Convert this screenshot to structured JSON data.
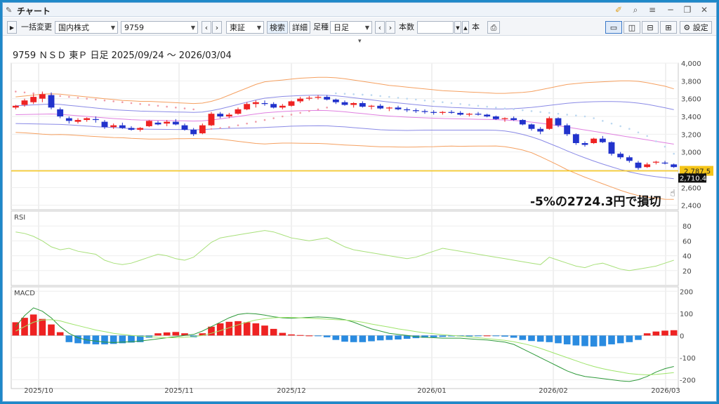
{
  "window": {
    "title": "チャート",
    "icons": [
      "pin-icon",
      "search-icon",
      "menu-icon",
      "minimize-icon",
      "restore-icon",
      "close-icon"
    ]
  },
  "toolbar": {
    "collapse_label": "▶",
    "bulk_change_label": "一括変更",
    "market_select": "国内株式",
    "code_input": "9759",
    "exchange_select": "東証",
    "search_label": "検索",
    "detail_label": "詳細",
    "timeframe_label": "足種",
    "timeframe_select": "日足",
    "bars_label": "本数",
    "bars_unit": "本",
    "settings_label": "設定"
  },
  "chart": {
    "header": "9759 ＮＳＤ 東Ｐ 日足 2025/09/24 ～ 2026/03/04",
    "price_badge_current": "2,787.5",
    "price_badge_cursor": "2,710.4",
    "annotation": "-5%の2724.3円で損切",
    "rsi_label": "RSI",
    "macd_label": "MACD",
    "colors": {
      "up": "#ee2222",
      "down": "#2233cc",
      "macd_pos": "#ee2222",
      "macd_neg": "#2a8be0",
      "rsi": "#a8e07a",
      "badge_current": "#f5c518",
      "badge_cursor": "#111111"
    }
  },
  "chart_data": [
    {
      "type": "candlestick",
      "title": "",
      "y_ticks": [
        2400,
        2600,
        2800,
        3000,
        3200,
        3400,
        3600,
        3800,
        4000
      ],
      "ylim": [
        2350,
        4000
      ],
      "x_ticks": [
        "2025/10",
        "2025/11",
        "2025/12",
        "2026/01",
        "2026/02",
        "2026/03"
      ],
      "candles": [
        [
          3500,
          3530,
          3480,
          3520
        ],
        [
          3530,
          3600,
          3510,
          3580
        ],
        [
          3560,
          3650,
          3540,
          3620
        ],
        [
          3600,
          3680,
          3560,
          3650
        ],
        [
          3640,
          3670,
          3480,
          3500
        ],
        [
          3480,
          3500,
          3380,
          3400
        ],
        [
          3380,
          3400,
          3320,
          3350
        ],
        [
          3340,
          3380,
          3320,
          3360
        ],
        [
          3360,
          3390,
          3340,
          3380
        ],
        [
          3370,
          3400,
          3330,
          3360
        ],
        [
          3340,
          3360,
          3260,
          3280
        ],
        [
          3280,
          3320,
          3260,
          3300
        ],
        [
          3300,
          3330,
          3260,
          3270
        ],
        [
          3270,
          3290,
          3240,
          3250
        ],
        [
          3250,
          3280,
          3230,
          3270
        ],
        [
          3290,
          3360,
          3280,
          3350
        ],
        [
          3330,
          3350,
          3300,
          3310
        ],
        [
          3320,
          3360,
          3290,
          3340
        ],
        [
          3340,
          3370,
          3300,
          3310
        ],
        [
          3300,
          3320,
          3240,
          3250
        ],
        [
          3250,
          3270,
          3180,
          3200
        ],
        [
          3210,
          3320,
          3200,
          3300
        ],
        [
          3300,
          3450,
          3290,
          3430
        ],
        [
          3430,
          3450,
          3380,
          3400
        ],
        [
          3400,
          3440,
          3380,
          3420
        ],
        [
          3430,
          3500,
          3420,
          3480
        ],
        [
          3480,
          3560,
          3470,
          3540
        ],
        [
          3540,
          3580,
          3500,
          3560
        ],
        [
          3550,
          3580,
          3520,
          3540
        ],
        [
          3540,
          3560,
          3490,
          3500
        ],
        [
          3500,
          3540,
          3480,
          3520
        ],
        [
          3520,
          3580,
          3510,
          3570
        ],
        [
          3570,
          3620,
          3550,
          3600
        ],
        [
          3600,
          3630,
          3580,
          3610
        ],
        [
          3610,
          3640,
          3590,
          3620
        ],
        [
          3620,
          3640,
          3580,
          3590
        ],
        [
          3590,
          3600,
          3540,
          3560
        ],
        [
          3560,
          3580,
          3520,
          3530
        ],
        [
          3530,
          3560,
          3500,
          3550
        ],
        [
          3550,
          3570,
          3500,
          3510
        ],
        [
          3510,
          3530,
          3480,
          3520
        ],
        [
          3520,
          3540,
          3480,
          3490
        ],
        [
          3490,
          3510,
          3460,
          3500
        ],
        [
          3500,
          3520,
          3470,
          3480
        ],
        [
          3480,
          3500,
          3450,
          3470
        ],
        [
          3470,
          3490,
          3440,
          3460
        ],
        [
          3460,
          3480,
          3430,
          3450
        ],
        [
          3450,
          3470,
          3420,
          3440
        ],
        [
          3440,
          3460,
          3420,
          3450
        ],
        [
          3450,
          3470,
          3430,
          3440
        ],
        [
          3440,
          3460,
          3410,
          3420
        ],
        [
          3420,
          3440,
          3400,
          3430
        ],
        [
          3430,
          3450,
          3410,
          3420
        ],
        [
          3420,
          3430,
          3390,
          3400
        ],
        [
          3400,
          3410,
          3360,
          3370
        ],
        [
          3370,
          3390,
          3340,
          3380
        ],
        [
          3380,
          3400,
          3350,
          3360
        ],
        [
          3360,
          3370,
          3300,
          3310
        ],
        [
          3310,
          3320,
          3240,
          3260
        ],
        [
          3260,
          3280,
          3200,
          3230
        ],
        [
          3260,
          3400,
          3250,
          3380
        ],
        [
          3380,
          3390,
          3280,
          3300
        ],
        [
          3300,
          3320,
          3180,
          3200
        ],
        [
          3200,
          3210,
          3080,
          3100
        ],
        [
          3100,
          3120,
          3060,
          3080
        ],
        [
          3100,
          3160,
          3090,
          3150
        ],
        [
          3150,
          3180,
          3100,
          3110
        ],
        [
          3110,
          3120,
          2960,
          2980
        ],
        [
          2980,
          3000,
          2920,
          2940
        ],
        [
          2940,
          2960,
          2880,
          2900
        ],
        [
          2880,
          2900,
          2800,
          2820
        ],
        [
          2830,
          2880,
          2820,
          2860
        ],
        [
          2880,
          2900,
          2860,
          2890
        ],
        [
          2880,
          2900,
          2860,
          2870
        ],
        [
          2860,
          2870,
          2820,
          2830
        ]
      ],
      "upper_2sigma": [
        3620,
        3630,
        3640,
        3650,
        3655,
        3650,
        3640,
        3630,
        3620,
        3610,
        3600,
        3590,
        3580,
        3575,
        3570,
        3570,
        3565,
        3560,
        3555,
        3550,
        3545,
        3550,
        3570,
        3600,
        3640,
        3680,
        3720,
        3760,
        3790,
        3800,
        3810,
        3820,
        3830,
        3835,
        3840,
        3840,
        3835,
        3825,
        3810,
        3795,
        3780,
        3765,
        3750,
        3740,
        3730,
        3720,
        3710,
        3700,
        3690,
        3685,
        3680,
        3675,
        3670,
        3665,
        3660,
        3660,
        3665,
        3670,
        3680,
        3700,
        3720,
        3740,
        3760,
        3770,
        3780,
        3785,
        3790,
        3795,
        3800,
        3800,
        3795,
        3780,
        3760,
        3740,
        3710
      ],
      "upper_1sigma": [
        3520,
        3525,
        3530,
        3535,
        3540,
        3535,
        3525,
        3515,
        3505,
        3495,
        3485,
        3475,
        3470,
        3465,
        3460,
        3458,
        3455,
        3452,
        3450,
        3448,
        3446,
        3450,
        3465,
        3485,
        3510,
        3535,
        3560,
        3585,
        3605,
        3615,
        3625,
        3630,
        3635,
        3638,
        3640,
        3638,
        3632,
        3622,
        3610,
        3598,
        3586,
        3574,
        3562,
        3552,
        3542,
        3532,
        3522,
        3514,
        3508,
        3502,
        3498,
        3494,
        3490,
        3486,
        3484,
        3484,
        3488,
        3494,
        3502,
        3512,
        3524,
        3536,
        3548,
        3556,
        3562,
        3566,
        3568,
        3568,
        3566,
        3560,
        3550,
        3536,
        3518,
        3498,
        3476
      ],
      "mid": [
        3420,
        3422,
        3424,
        3426,
        3428,
        3424,
        3416,
        3408,
        3400,
        3392,
        3384,
        3376,
        3370,
        3364,
        3360,
        3358,
        3356,
        3354,
        3352,
        3350,
        3348,
        3350,
        3360,
        3372,
        3386,
        3400,
        3414,
        3428,
        3440,
        3448,
        3455,
        3460,
        3464,
        3466,
        3468,
        3466,
        3460,
        3452,
        3442,
        3432,
        3422,
        3412,
        3404,
        3398,
        3392,
        3388,
        3384,
        3380,
        3377,
        3374,
        3372,
        3370,
        3368,
        3366,
        3364,
        3360,
        3354,
        3346,
        3336,
        3324,
        3310,
        3296,
        3280,
        3264,
        3248,
        3232,
        3216,
        3200,
        3184,
        3168,
        3152,
        3136,
        3120,
        3104,
        3088
      ],
      "lower_1sigma": [
        3320,
        3318,
        3316,
        3314,
        3312,
        3310,
        3305,
        3298,
        3292,
        3285,
        3280,
        3275,
        3270,
        3262,
        3258,
        3256,
        3255,
        3254,
        3253,
        3252,
        3250,
        3252,
        3258,
        3262,
        3266,
        3268,
        3270,
        3272,
        3276,
        3281,
        3285,
        3290,
        3293,
        3294,
        3296,
        3294,
        3288,
        3282,
        3274,
        3266,
        3258,
        3250,
        3246,
        3244,
        3242,
        3244,
        3246,
        3246,
        3246,
        3246,
        3246,
        3246,
        3246,
        3246,
        3244,
        3236,
        3220,
        3198,
        3170,
        3136,
        3096,
        3056,
        3012,
        2972,
        2934,
        2898,
        2864,
        2832,
        2802,
        2776,
        2754,
        2736,
        2722,
        2710,
        2700
      ],
      "lower_2sigma": [
        3220,
        3215,
        3208,
        3200,
        3195,
        3196,
        3192,
        3186,
        3180,
        3174,
        3168,
        3162,
        3160,
        3153,
        3150,
        3146,
        3145,
        3146,
        3149,
        3150,
        3151,
        3150,
        3150,
        3144,
        3132,
        3120,
        3108,
        3096,
        3090,
        3096,
        3100,
        3100,
        3098,
        3097,
        3096,
        3092,
        3085,
        3079,
        3074,
        3069,
        3064,
        3059,
        3058,
        3056,
        3054,
        3056,
        3058,
        3060,
        3064,
        3067,
        3064,
        3065,
        3066,
        3067,
        3068,
        3060,
        3043,
        3022,
        2992,
        2948,
        2900,
        2852,
        2800,
        2758,
        2716,
        2679,
        2642,
        2605,
        2568,
        2536,
        2509,
        2492,
        2480,
        2468,
        2466
      ],
      "sar": [
        3680,
        3670,
        3660,
        3650,
        3640,
        3630,
        3620,
        3610,
        3600,
        3590,
        3580,
        3570,
        3560,
        3550,
        3540,
        3530,
        3520,
        3510,
        3500,
        3490,
        3480,
        3250,
        3260,
        3270,
        3280,
        3300,
        3320,
        3340,
        3360,
        3380,
        3400,
        3420,
        3440,
        3460,
        3480,
        3500,
        3660,
        3655,
        3650,
        3645,
        3640,
        3630,
        3620,
        3610,
        3600,
        3590,
        3580,
        3570,
        3560,
        3550,
        3540,
        3530,
        3520,
        3510,
        3500,
        3490,
        3480,
        3470,
        3460,
        3450,
        3440,
        3430,
        3420,
        3410,
        3400,
        3380,
        3350,
        3320,
        3290,
        3260,
        3220,
        3180,
        3120,
        3060,
        2980
      ]
    },
    {
      "type": "line",
      "name": "RSI",
      "y_ticks": [
        20,
        40,
        60,
        80
      ],
      "ylim": [
        0,
        100
      ],
      "values": [
        72,
        70,
        66,
        60,
        52,
        48,
        50,
        46,
        44,
        42,
        34,
        30,
        28,
        30,
        34,
        38,
        42,
        40,
        36,
        34,
        38,
        48,
        58,
        64,
        66,
        68,
        70,
        72,
        74,
        72,
        68,
        64,
        62,
        60,
        62,
        64,
        58,
        52,
        48,
        46,
        44,
        42,
        40,
        38,
        36,
        38,
        42,
        46,
        50,
        48,
        46,
        44,
        42,
        40,
        38,
        36,
        34,
        32,
        30,
        28,
        38,
        34,
        30,
        26,
        24,
        28,
        30,
        26,
        22,
        20,
        22,
        24,
        26,
        30,
        34
      ]
    },
    {
      "type": "bar+line",
      "name": "MACD",
      "y_ticks": [
        -200,
        -100,
        0,
        100,
        200
      ],
      "ylim": [
        -240,
        220
      ],
      "histogram": [
        60,
        80,
        95,
        75,
        50,
        15,
        -30,
        -35,
        -38,
        -40,
        -40,
        -38,
        -35,
        -32,
        -30,
        -10,
        10,
        14,
        16,
        10,
        -8,
        10,
        40,
        55,
        62,
        65,
        60,
        55,
        45,
        30,
        12,
        5,
        2,
        0,
        -2,
        -8,
        -20,
        -28,
        -30,
        -30,
        -26,
        -22,
        -20,
        -18,
        -15,
        -12,
        -10,
        -8,
        -6,
        -4,
        -4,
        -4,
        -2,
        0,
        -2,
        -5,
        -10,
        -20,
        -25,
        -28,
        -30,
        -35,
        -40,
        -45,
        -48,
        -50,
        -48,
        -40,
        -35,
        -30,
        -20,
        10,
        18,
        22,
        24
      ],
      "macd": [
        40,
        90,
        125,
        110,
        80,
        40,
        10,
        -10,
        -20,
        -25,
        -30,
        -32,
        -30,
        -28,
        -25,
        -20,
        -15,
        -10,
        -5,
        0,
        5,
        20,
        40,
        60,
        80,
        95,
        100,
        98,
        92,
        85,
        80,
        78,
        80,
        82,
        84,
        82,
        78,
        72,
        60,
        45,
        30,
        20,
        10,
        5,
        0,
        -5,
        -8,
        -10,
        -12,
        -12,
        -12,
        -15,
        -18,
        -20,
        -25,
        -30,
        -40,
        -60,
        -80,
        -100,
        -120,
        -140,
        -160,
        -175,
        -185,
        -190,
        -195,
        -200,
        -205,
        -208,
        -200,
        -185,
        -165,
        -150,
        -140
      ],
      "signal": [
        20,
        40,
        60,
        70,
        72,
        66,
        55,
        45,
        35,
        25,
        18,
        10,
        5,
        0,
        -3,
        -5,
        -8,
        -10,
        -10,
        -8,
        -5,
        0,
        10,
        22,
        35,
        48,
        60,
        70,
        76,
        80,
        82,
        82,
        80,
        78,
        76,
        74,
        72,
        70,
        66,
        60,
        52,
        45,
        38,
        30,
        24,
        18,
        12,
        8,
        4,
        0,
        -3,
        -6,
        -10,
        -14,
        -18,
        -22,
        -28,
        -36,
        -46,
        -58,
        -72,
        -86,
        -100,
        -114,
        -128,
        -140,
        -150,
        -158,
        -165,
        -172,
        -176,
        -178,
        -176,
        -172,
        -168
      ]
    }
  ]
}
